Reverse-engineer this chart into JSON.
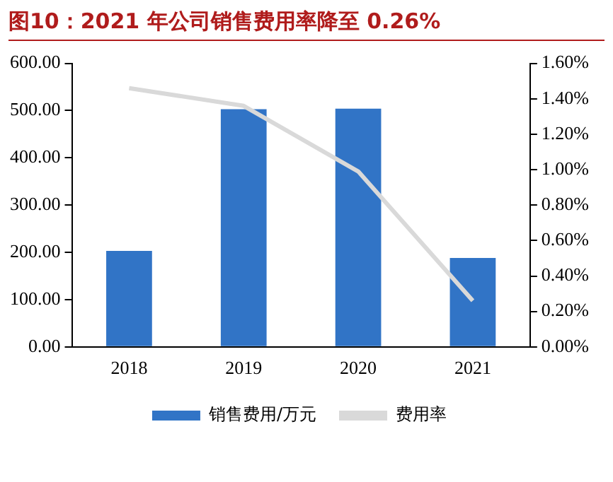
{
  "chart_data": {
    "type": "bar",
    "title": "图10：2021 年公司销售费用率降至 0.26%",
    "categories": [
      "2018",
      "2019",
      "2020",
      "2021"
    ],
    "series": [
      {
        "name": "销售费用/万元",
        "color": "#3174c6",
        "values": [
          203,
          503,
          504,
          188
        ]
      },
      {
        "name": "费用率",
        "type": "line",
        "axis": "y2",
        "color": "#d9d9d9",
        "values": [
          1.46,
          1.36,
          0.99,
          0.26
        ]
      }
    ],
    "ylim": [
      0,
      600
    ],
    "yticks": [
      {
        "value": 0,
        "label": "0.00"
      },
      {
        "value": 100,
        "label": "100.00"
      },
      {
        "value": 200,
        "label": "200.00"
      },
      {
        "value": 300,
        "label": "300.00"
      },
      {
        "value": 400,
        "label": "400.00"
      },
      {
        "value": 500,
        "label": "500.00"
      },
      {
        "value": 600,
        "label": "600.00"
      }
    ],
    "y2lim": [
      0,
      1.6
    ],
    "y2ticks": [
      {
        "value": 0,
        "label": "0.00%"
      },
      {
        "value": 0.2,
        "label": "0.20%"
      },
      {
        "value": 0.4,
        "label": "0.40%"
      },
      {
        "value": 0.6,
        "label": "0.60%"
      },
      {
        "value": 0.8,
        "label": "0.80%"
      },
      {
        "value": 1,
        "label": "1.00%"
      },
      {
        "value": 1.2,
        "label": "1.20%"
      },
      {
        "value": 1.4,
        "label": "1.40%"
      },
      {
        "value": 1.6,
        "label": "1.60%"
      }
    ],
    "grid": false,
    "legend": "bottom",
    "marker": "none"
  }
}
